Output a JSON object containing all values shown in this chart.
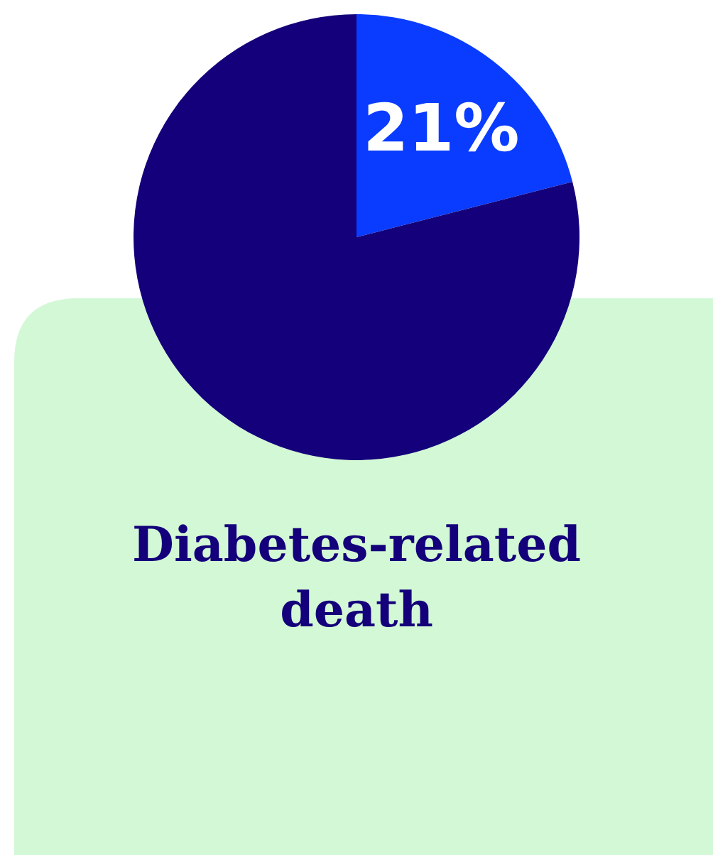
{
  "chart_data": {
    "type": "pie",
    "title": "Diabetes-related death",
    "categories": [
      null,
      null
    ],
    "values": [
      21,
      79
    ],
    "colors": [
      "#0a3cff",
      "#14007a"
    ],
    "value_labels": [
      "21%",
      null
    ]
  }
}
